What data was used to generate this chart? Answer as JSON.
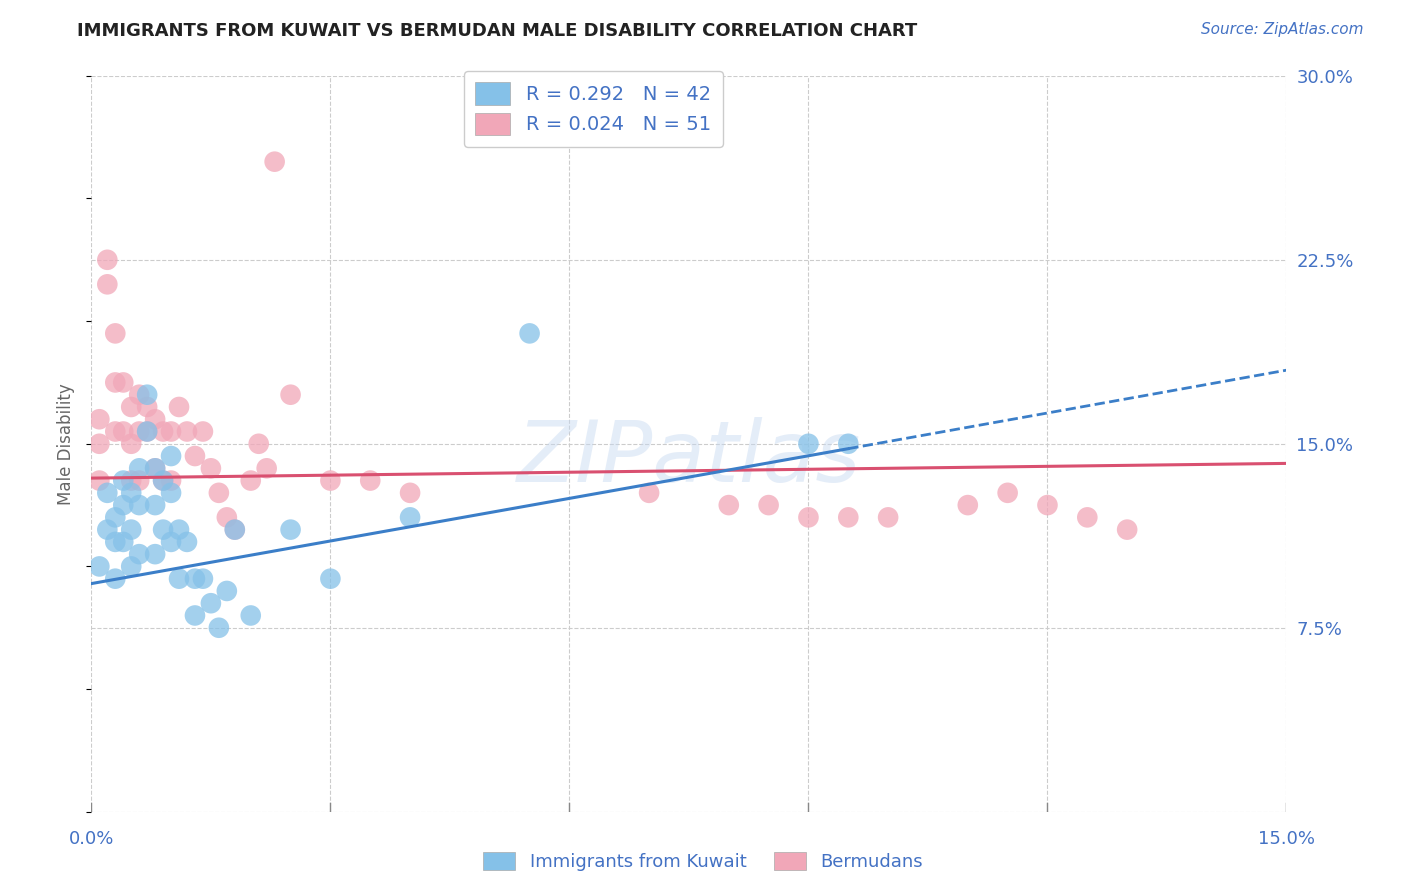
{
  "title": "IMMIGRANTS FROM KUWAIT VS BERMUDAN MALE DISABILITY CORRELATION CHART",
  "source": "Source: ZipAtlas.com",
  "ylabel": "Male Disability",
  "xmin": 0.0,
  "xmax": 0.15,
  "ymin": 0.0,
  "ymax": 0.3,
  "yticks": [
    0.0,
    0.075,
    0.15,
    0.225,
    0.3
  ],
  "ytick_labels": [
    "",
    "7.5%",
    "15.0%",
    "22.5%",
    "30.0%"
  ],
  "xticks": [
    0.0,
    0.03,
    0.06,
    0.09,
    0.12,
    0.15
  ],
  "xtick_labels": [
    "0.0%",
    "",
    "",
    "",
    "",
    "15.0%"
  ],
  "legend_r1": "R = 0.292   N = 42",
  "legend_r2": "R = 0.024   N = 51",
  "legend_label1": "Immigrants from Kuwait",
  "legend_label2": "Bermudans",
  "color_blue": "#85C1E8",
  "color_pink": "#F1A7B8",
  "color_blue_line": "#3B7EC8",
  "color_pink_line": "#D95070",
  "color_axis_labels": "#4472C4",
  "color_source": "#4472C4",
  "blue_scatter_x": [
    0.001,
    0.002,
    0.002,
    0.003,
    0.003,
    0.003,
    0.004,
    0.004,
    0.004,
    0.005,
    0.005,
    0.005,
    0.006,
    0.006,
    0.006,
    0.007,
    0.007,
    0.008,
    0.008,
    0.008,
    0.009,
    0.009,
    0.01,
    0.01,
    0.01,
    0.011,
    0.011,
    0.012,
    0.013,
    0.013,
    0.014,
    0.015,
    0.016,
    0.017,
    0.018,
    0.02,
    0.025,
    0.03,
    0.04,
    0.055,
    0.09,
    0.095
  ],
  "blue_scatter_y": [
    0.1,
    0.13,
    0.115,
    0.12,
    0.11,
    0.095,
    0.135,
    0.125,
    0.11,
    0.13,
    0.115,
    0.1,
    0.14,
    0.125,
    0.105,
    0.17,
    0.155,
    0.14,
    0.125,
    0.105,
    0.135,
    0.115,
    0.145,
    0.13,
    0.11,
    0.115,
    0.095,
    0.11,
    0.095,
    0.08,
    0.095,
    0.085,
    0.075,
    0.09,
    0.115,
    0.08,
    0.115,
    0.095,
    0.12,
    0.195,
    0.15,
    0.15
  ],
  "pink_scatter_x": [
    0.001,
    0.001,
    0.001,
    0.002,
    0.002,
    0.003,
    0.003,
    0.003,
    0.004,
    0.004,
    0.005,
    0.005,
    0.005,
    0.006,
    0.006,
    0.006,
    0.007,
    0.007,
    0.008,
    0.008,
    0.009,
    0.009,
    0.01,
    0.01,
    0.011,
    0.012,
    0.013,
    0.014,
    0.015,
    0.016,
    0.017,
    0.018,
    0.02,
    0.021,
    0.022,
    0.023,
    0.025,
    0.03,
    0.035,
    0.04,
    0.07,
    0.08,
    0.085,
    0.09,
    0.095,
    0.1,
    0.11,
    0.115,
    0.12,
    0.125,
    0.13
  ],
  "pink_scatter_y": [
    0.16,
    0.15,
    0.135,
    0.225,
    0.215,
    0.195,
    0.175,
    0.155,
    0.175,
    0.155,
    0.165,
    0.15,
    0.135,
    0.17,
    0.155,
    0.135,
    0.165,
    0.155,
    0.16,
    0.14,
    0.155,
    0.135,
    0.155,
    0.135,
    0.165,
    0.155,
    0.145,
    0.155,
    0.14,
    0.13,
    0.12,
    0.115,
    0.135,
    0.15,
    0.14,
    0.265,
    0.17,
    0.135,
    0.135,
    0.13,
    0.13,
    0.125,
    0.125,
    0.12,
    0.12,
    0.12,
    0.125,
    0.13,
    0.125,
    0.12,
    0.115
  ],
  "blue_trendline_x0": 0.0,
  "blue_trendline_x1": 0.095,
  "blue_trendline_x2": 0.15,
  "blue_trendline_y0": 0.093,
  "blue_trendline_y1": 0.148,
  "blue_trendline_y2": 0.18,
  "pink_trendline_x0": 0.0,
  "pink_trendline_x1": 0.15,
  "pink_trendline_y0": 0.136,
  "pink_trendline_y1": 0.142,
  "watermark_text": "ZIPatlas",
  "background_color": "#ffffff",
  "grid_color": "#cccccc"
}
